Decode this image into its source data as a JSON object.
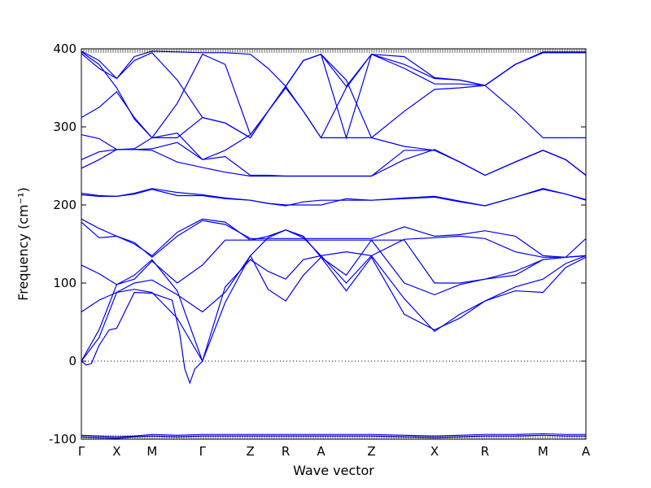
{
  "chart_data": {
    "type": "line",
    "title": "",
    "xlabel": "Wave vector",
    "ylabel": "Frequency (cm⁻¹)",
    "ylim": [
      -100,
      400
    ],
    "yticks": [
      -100,
      0,
      100,
      200,
      300,
      400
    ],
    "xlim": [
      0,
      12
    ],
    "high_symmetry_points": [
      {
        "label": "Γ",
        "x": 0
      },
      {
        "label": "X",
        "x": 0.7
      },
      {
        "label": "M",
        "x": 1.4
      },
      {
        "label": "Γ",
        "x": 2.4
      },
      {
        "label": "Z",
        "x": 3.35
      },
      {
        "label": "R",
        "x": 4.05
      },
      {
        "label": "A",
        "x": 4.75
      },
      {
        "label": "Z",
        "x": 5.75
      },
      {
        "label": "X",
        "x": 7.0
      },
      {
        "label": "R",
        "x": 8.0
      },
      {
        "label": "M",
        "x": 9.15
      },
      {
        "label": "A",
        "x": 10.0
      }
    ],
    "zero_line": 0,
    "grid": false,
    "series_color": "#0000ee",
    "series": [
      {
        "x": [
          0,
          0.35,
          0.7,
          1.05,
          1.4,
          1.9,
          2.4,
          2.85,
          3.35,
          3.7,
          4.05,
          4.4,
          4.75,
          5.25,
          5.75,
          6.4,
          7.0,
          7.5,
          8.0,
          8.6,
          9.15,
          9.6,
          10.0
        ],
        "y": [
          -97,
          -98,
          -99,
          -97,
          -96,
          -97,
          -96,
          -96,
          -96,
          -96,
          -96,
          -96,
          -96,
          -96,
          -96,
          -97,
          -98,
          -97,
          -96,
          -96,
          -95,
          -96,
          -96
        ]
      },
      {
        "x": [
          0,
          0.35,
          0.7,
          1.05,
          1.4,
          1.9,
          2.4,
          2.85,
          3.35,
          3.7,
          4.05,
          4.4,
          4.75,
          5.25,
          5.75,
          6.4,
          7.0,
          7.5,
          8.0,
          8.6,
          9.15,
          9.6,
          10.0
        ],
        "y": [
          -95,
          -96,
          -97,
          -96,
          -94,
          -95,
          -94,
          -94,
          -94,
          -94,
          -94,
          -94,
          -94,
          -94,
          -94,
          -95,
          -96,
          -95,
          -94,
          -94,
          -93,
          -94,
          -94
        ]
      },
      {
        "x": [
          0,
          0.1,
          0.2,
          0.35,
          0.55,
          0.7,
          1.05,
          1.4,
          1.8,
          1.95,
          2.05,
          2.15,
          2.25,
          2.4
        ],
        "y": [
          0,
          -5,
          -3,
          20,
          40,
          42,
          88,
          87,
          78,
          35,
          -10,
          -28,
          -10,
          0
        ]
      },
      {
        "x": [
          0,
          0.35,
          0.7,
          1.05,
          1.4,
          1.9,
          2.4,
          2.85,
          3.35,
          3.7,
          4.05,
          4.4,
          4.75,
          5.25,
          5.75,
          6.4,
          7.0,
          7.5,
          8.0,
          8.6,
          9.15,
          9.6,
          10.0
        ],
        "y": [
          0,
          30,
          88,
          92,
          88,
          55,
          0,
          75,
          135,
          92,
          77,
          110,
          133,
          90,
          133,
          60,
          40,
          55,
          77,
          90,
          88,
          120,
          133
        ]
      },
      {
        "x": [
          0,
          0.35,
          0.7,
          1.05,
          1.4,
          1.9,
          2.4,
          2.85,
          3.35,
          3.7,
          4.05,
          4.4,
          4.75,
          5.25,
          5.75,
          6.4,
          7.0,
          7.5,
          8.0,
          8.6,
          9.15,
          9.6,
          10.0
        ],
        "y": [
          0,
          40,
          98,
          110,
          130,
          90,
          0,
          95,
          130,
          115,
          105,
          130,
          135,
          100,
          135,
          80,
          38,
          60,
          77,
          95,
          105,
          125,
          135
        ]
      },
      {
        "x": [
          0,
          0.35,
          0.7,
          1.05,
          1.4,
          1.9,
          2.4,
          2.85,
          3.35,
          3.7,
          4.05,
          4.4,
          4.75,
          5.25,
          5.75,
          6.4,
          7.0,
          7.5,
          8.0,
          8.6,
          9.15,
          9.6,
          10.0
        ],
        "y": [
          63,
          78,
          88,
          100,
          104,
          85,
          63,
          88,
          135,
          158,
          168,
          160,
          133,
          110,
          155,
          100,
          85,
          98,
          105,
          115,
          130,
          133,
          135
        ]
      },
      {
        "x": [
          0,
          0.35,
          0.7,
          1.05,
          1.4,
          1.9,
          2.4,
          2.85,
          3.35,
          3.7,
          4.05,
          4.4,
          4.75,
          5.25,
          5.75,
          6.4,
          7.0,
          7.5,
          8.0,
          8.6,
          9.15,
          9.6,
          10.0
        ],
        "y": [
          123,
          112,
          98,
          105,
          128,
          100,
          123,
          155,
          155,
          155,
          155,
          155,
          155,
          155,
          155,
          155,
          100,
          100,
          105,
          110,
          130,
          133,
          135
        ]
      },
      {
        "x": [
          0,
          0.35,
          0.7,
          1.05,
          1.4,
          1.9,
          2.4,
          2.85,
          3.35,
          3.7,
          4.05,
          4.4,
          4.75,
          5.25,
          5.75,
          6.4,
          7.0,
          7.5,
          8.0,
          8.6,
          9.15,
          9.6,
          10.0
        ],
        "y": [
          178,
          158,
          160,
          152,
          133,
          160,
          180,
          175,
          157,
          157,
          157,
          157,
          157,
          157,
          157,
          172,
          160,
          162,
          167,
          160,
          135,
          133,
          157
        ]
      },
      {
        "x": [
          0,
          0.35,
          0.7,
          1.05,
          1.4,
          1.9,
          2.4,
          2.85,
          3.35,
          3.7,
          4.05,
          4.4,
          4.75,
          5.25,
          5.75,
          6.4,
          7.0,
          7.5,
          8.0,
          8.6,
          9.15,
          9.6,
          10.0
        ],
        "y": [
          182,
          170,
          160,
          150,
          135,
          165,
          182,
          178,
          155,
          160,
          168,
          158,
          135,
          140,
          135,
          156,
          158,
          160,
          157,
          140,
          133,
          133,
          135
        ]
      },
      {
        "x": [
          0,
          0.35,
          0.7,
          1.05,
          1.4,
          1.9,
          2.4,
          2.85,
          3.35,
          3.7,
          4.05,
          4.4,
          4.75,
          5.25,
          5.75,
          6.4,
          7.0,
          7.5,
          8.0,
          8.6,
          9.15,
          9.6,
          10.0
        ],
        "y": [
          213,
          211,
          211,
          215,
          221,
          216,
          213,
          209,
          206,
          202,
          199,
          204,
          206,
          206,
          206,
          209,
          211,
          205,
          199,
          210,
          221,
          214,
          206
        ]
      },
      {
        "x": [
          0,
          0.35,
          0.7,
          1.05,
          1.4,
          1.9,
          2.4,
          2.85,
          3.35,
          3.7,
          4.05,
          4.4,
          4.75,
          5.25,
          5.75,
          6.4,
          7.0,
          7.5,
          8.0,
          8.6,
          9.15,
          9.6,
          10.0
        ],
        "y": [
          215,
          212,
          211,
          214,
          220,
          212,
          212,
          208,
          206,
          202,
          200,
          200,
          200,
          208,
          206,
          208,
          210,
          204,
          199,
          210,
          220,
          214,
          207
        ]
      },
      {
        "x": [
          0,
          0.35,
          0.7,
          1.05,
          1.4,
          1.9,
          2.4,
          2.85,
          3.35,
          3.7,
          4.05,
          4.4,
          4.75,
          5.25,
          5.75,
          6.4,
          7.0,
          7.5,
          8.0,
          8.6,
          9.15,
          9.6,
          10.0
        ],
        "y": [
          247,
          258,
          271,
          271,
          270,
          255,
          248,
          242,
          237,
          237,
          237,
          237,
          237,
          237,
          237,
          258,
          271,
          255,
          238,
          255,
          270,
          258,
          238
        ]
      },
      {
        "x": [
          0,
          0.35,
          0.7,
          1.05,
          1.4,
          1.9,
          2.4,
          2.85,
          3.35,
          3.7,
          4.05,
          4.4,
          4.75,
          5.25,
          5.75,
          6.4,
          7.0,
          7.5,
          8.0,
          8.6,
          9.15,
          9.6,
          10.0
        ],
        "y": [
          258,
          268,
          271,
          271,
          272,
          280,
          258,
          262,
          238,
          238,
          237,
          237,
          237,
          237,
          237,
          270,
          270,
          255,
          238,
          255,
          270,
          258,
          238
        ]
      },
      {
        "x": [
          0,
          0.35,
          0.7,
          1.05,
          1.4,
          1.9,
          2.4,
          2.85,
          3.35,
          3.7,
          4.05,
          4.4,
          4.75,
          5.25,
          5.75,
          6.4,
          7.0,
          7.5,
          8.0,
          8.6,
          9.15,
          9.6,
          10.0
        ],
        "y": [
          290,
          285,
          271,
          272,
          286,
          292,
          258,
          270,
          290,
          320,
          350,
          320,
          286,
          286,
          286,
          275,
          270,
          255,
          238,
          255,
          270,
          258,
          238
        ]
      },
      {
        "x": [
          0,
          0.35,
          0.7,
          1.05,
          1.4,
          1.9,
          2.4,
          2.85,
          3.35,
          3.7,
          4.05,
          4.4,
          4.75,
          5.25,
          5.75,
          6.4,
          7.0,
          7.5,
          8.0,
          8.6,
          9.15,
          9.6,
          10.0
        ],
        "y": [
          312,
          325,
          345,
          312,
          286,
          286,
          312,
          305,
          286,
          320,
          352,
          385,
          393,
          360,
          286,
          320,
          348,
          350,
          353,
          320,
          286,
          286,
          286
        ]
      },
      {
        "x": [
          0,
          0.35,
          0.7,
          1.05,
          1.4,
          1.9,
          2.4,
          2.85,
          3.35,
          3.7,
          4.05,
          4.4,
          4.75,
          5.25,
          5.75,
          6.4,
          7.0,
          7.5,
          8.0,
          8.6,
          9.15,
          9.6,
          10.0
        ],
        "y": [
          396,
          380,
          350,
          310,
          286,
          330,
          393,
          380,
          290,
          320,
          352,
          320,
          286,
          350,
          393,
          380,
          362,
          360,
          353,
          380,
          395,
          395,
          395
        ]
      },
      {
        "x": [
          0,
          0.35,
          0.7,
          1.05,
          1.4,
          1.9,
          2.4,
          2.85,
          3.35,
          3.7,
          4.05,
          4.4,
          4.75,
          5.25,
          5.75,
          6.4,
          7.0,
          7.5,
          8.0,
          8.6,
          9.15,
          9.6,
          10.0
        ],
        "y": [
          394,
          375,
          362,
          385,
          395,
          360,
          312,
          305,
          286,
          320,
          352,
          385,
          393,
          286,
          393,
          390,
          363,
          360,
          353,
          380,
          395,
          395,
          395
        ]
      },
      {
        "x": [
          0,
          0.35,
          0.7,
          1.05,
          1.4,
          1.9,
          2.4,
          2.85,
          3.35,
          3.7,
          4.05,
          4.4,
          4.75,
          5.25,
          5.75,
          6.4,
          7.0,
          7.5,
          8.0,
          8.6,
          9.15,
          9.6,
          10.0
        ],
        "y": [
          397,
          385,
          362,
          390,
          397,
          396,
          395,
          395,
          393,
          375,
          352,
          385,
          393,
          352,
          393,
          375,
          355,
          355,
          353,
          380,
          396,
          396,
          396
        ]
      }
    ]
  }
}
